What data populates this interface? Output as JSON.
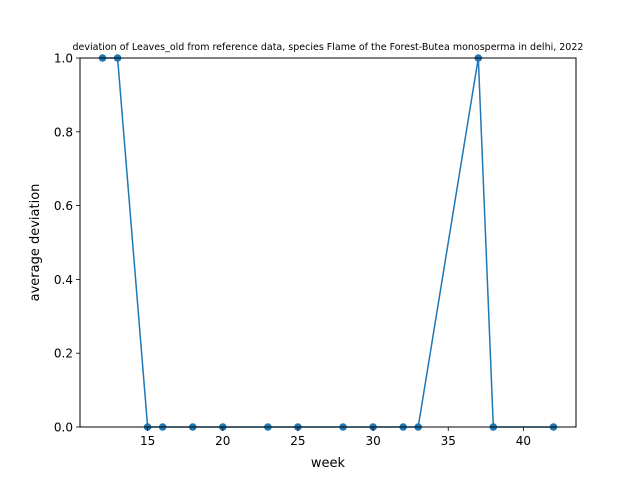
{
  "chart_data": {
    "type": "line",
    "title": "deviation of Leaves_old from reference data, species Flame of the Forest-Butea monosperma in delhi, 2022",
    "xlabel": "week",
    "ylabel": "average deviation",
    "xlim": [
      10.5,
      43.5
    ],
    "ylim": [
      0.0,
      1.0
    ],
    "xticks": [
      15,
      20,
      25,
      30,
      35,
      40
    ],
    "yticks": [
      0.0,
      0.2,
      0.4,
      0.6,
      0.8,
      1.0
    ],
    "xtick_labels": [
      "15",
      "20",
      "25",
      "30",
      "35",
      "40"
    ],
    "ytick_labels": [
      "0.0",
      "0.2",
      "0.4",
      "0.6",
      "0.8",
      "1.0"
    ],
    "grid": false,
    "legend": "none",
    "series": [
      {
        "color": "#1f77b4",
        "marker": "circle",
        "x": [
          12,
          13,
          15,
          16,
          18,
          20,
          23,
          25,
          28,
          30,
          32,
          33,
          37,
          38,
          42
        ],
        "y": [
          1.0,
          1.0,
          0.0,
          0.0,
          0.0,
          0.0,
          0.0,
          0.0,
          0.0,
          0.0,
          0.0,
          0.0,
          1.0,
          0.0,
          0.0
        ]
      }
    ],
    "reference_points": {
      "color": "#d62728",
      "x": [
        12,
        13,
        15,
        16,
        18,
        20,
        23,
        25,
        28,
        30,
        32,
        33,
        37,
        38,
        42
      ],
      "y": [
        1.0,
        1.0,
        0.0,
        0.0,
        0.0,
        0.0,
        0.0,
        0.0,
        0.0,
        0.0,
        0.0,
        0.0,
        1.0,
        0.0,
        0.0
      ]
    }
  }
}
